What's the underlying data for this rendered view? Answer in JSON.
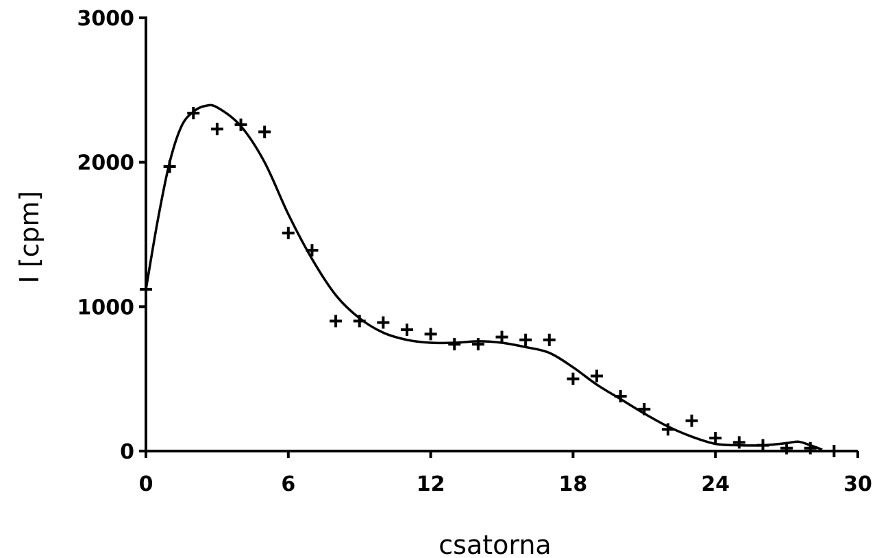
{
  "chart_data": {
    "type": "scatter",
    "title": "",
    "xlabel": "csatorna",
    "ylabel": "I  [cpm]",
    "xlim": [
      0,
      30
    ],
    "ylim": [
      0,
      3000
    ],
    "x_ticks": [
      0,
      6,
      12,
      18,
      24,
      30
    ],
    "x_tick_labels": [
      "0",
      "6",
      "12",
      "18",
      "24",
      "30"
    ],
    "y_ticks": [
      0,
      1000,
      2000,
      3000
    ],
    "y_tick_labels": [
      "0",
      "1000",
      "2000",
      "3000"
    ],
    "grid": false,
    "legend": "none",
    "series": [
      {
        "marker": "plus",
        "x": [
          0,
          1,
          2,
          3,
          4,
          5,
          6,
          7,
          8,
          9,
          10,
          11,
          12,
          13,
          14,
          15,
          16,
          17,
          18,
          19,
          20,
          21,
          22,
          23,
          24,
          25,
          26,
          27,
          28,
          29
        ],
        "y": [
          1120,
          1970,
          2340,
          2230,
          2260,
          2210,
          1510,
          1390,
          900,
          900,
          890,
          840,
          810,
          740,
          740,
          790,
          770,
          770,
          500,
          520,
          380,
          290,
          150,
          210,
          90,
          60,
          40,
          20,
          20,
          0
        ]
      },
      {
        "style": "smooth-line",
        "x": [
          0,
          0.5,
          1,
          1.5,
          2,
          2.5,
          3,
          4,
          5,
          6,
          7,
          8,
          9,
          10,
          11,
          12,
          13,
          14,
          15,
          16,
          17,
          18,
          19,
          20,
          21,
          22,
          23,
          24,
          25,
          26,
          27,
          27.5,
          28,
          28.5
        ],
        "y": [
          1120,
          1600,
          2000,
          2250,
          2350,
          2390,
          2380,
          2250,
          2000,
          1640,
          1330,
          1080,
          920,
          820,
          770,
          750,
          750,
          760,
          750,
          720,
          680,
          580,
          460,
          360,
          260,
          170,
          100,
          50,
          40,
          40,
          55,
          65,
          40,
          10
        ]
      }
    ]
  }
}
